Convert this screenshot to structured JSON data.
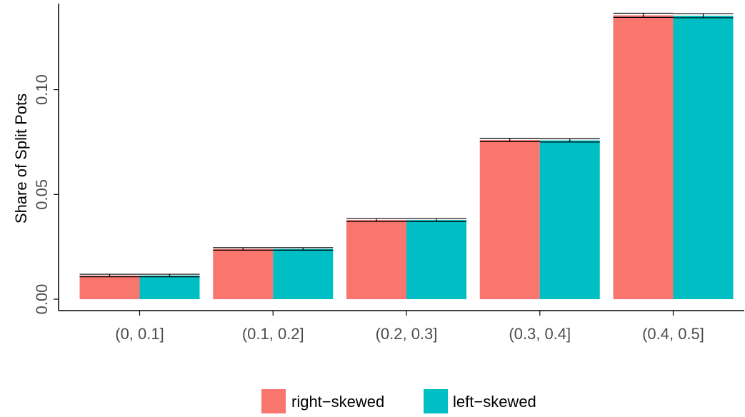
{
  "chart_data": {
    "type": "bar",
    "title": "",
    "xlabel": "",
    "ylabel": "Share of Split Pots",
    "categories": [
      "(0, 0.1]",
      "(0.1, 0.2]",
      "(0.2, 0.3]",
      "(0.3, 0.4]",
      "(0.4, 0.5]"
    ],
    "series": [
      {
        "name": "right−skewed",
        "color": "#F8766D",
        "values": [
          0.0113,
          0.024,
          0.0378,
          0.076,
          0.1355
        ],
        "errors": [
          0.0006,
          0.0006,
          0.0007,
          0.0008,
          0.001
        ]
      },
      {
        "name": "left−skewed",
        "color": "#00BFC4",
        "values": [
          0.0113,
          0.024,
          0.0378,
          0.0758,
          0.1353
        ],
        "errors": [
          0.0006,
          0.0006,
          0.0007,
          0.0008,
          0.001
        ]
      }
    ],
    "yticks": [
      0.0,
      0.05,
      0.1
    ],
    "ytick_labels": [
      "0.00",
      "0.05",
      "0.10"
    ],
    "ylim": [
      0,
      0.1411
    ],
    "grid": false,
    "legend_position": "bottom"
  }
}
